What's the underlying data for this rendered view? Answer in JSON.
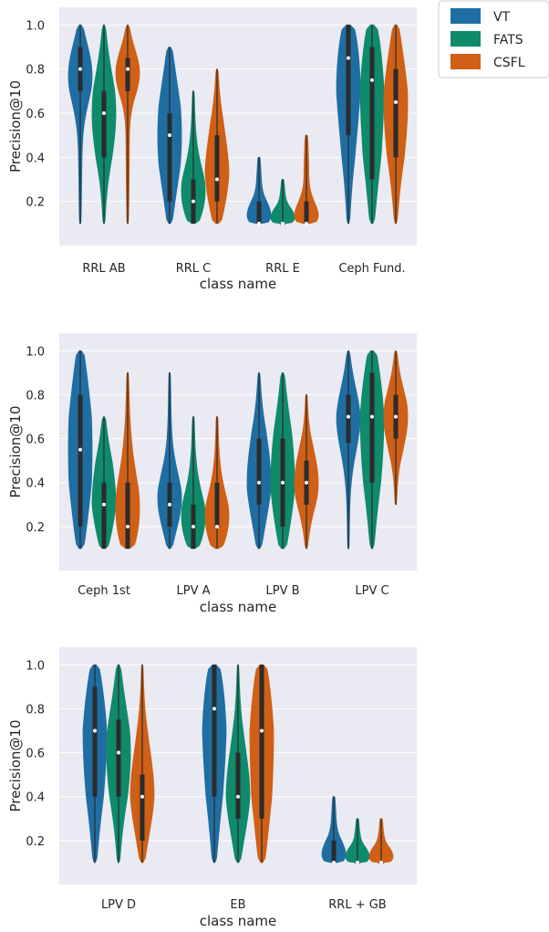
{
  "legend": {
    "entries": [
      {
        "name": "VT",
        "color": "#1f6ea3"
      },
      {
        "name": "FATS",
        "color": "#0f8a6b"
      },
      {
        "name": "CSFL",
        "color": "#cf6016"
      }
    ]
  },
  "chart_data": [
    {
      "type": "violin",
      "xlabel": "class name",
      "ylabel": "Precision@10",
      "ylim": [
        0.0,
        1.08
      ],
      "yticks": [
        "0.2",
        "0.4",
        "0.6",
        "0.8",
        "1.0"
      ],
      "categories": [
        "RRL AB",
        "RRL C",
        "RRL E",
        "Ceph Fund."
      ],
      "series": [
        {
          "name": "VT",
          "medians": [
            0.8,
            0.5,
            0.1,
            0.85
          ],
          "q1": [
            0.7,
            0.2,
            0.1,
            0.5
          ],
          "q3": [
            0.9,
            0.6,
            0.2,
            1.0
          ],
          "min": [
            0.1,
            0.1,
            0.1,
            0.1
          ],
          "max": [
            1.0,
            0.9,
            0.4,
            1.0
          ]
        },
        {
          "name": "FATS",
          "medians": [
            0.6,
            0.2,
            0.1,
            0.75
          ],
          "q1": [
            0.4,
            0.1,
            0.1,
            0.3
          ],
          "q3": [
            0.7,
            0.3,
            0.1,
            0.9
          ],
          "min": [
            0.1,
            0.1,
            0.1,
            0.1
          ],
          "max": [
            1.0,
            0.7,
            0.3,
            1.0
          ]
        },
        {
          "name": "CSFL",
          "medians": [
            0.8,
            0.3,
            0.1,
            0.65
          ],
          "q1": [
            0.7,
            0.2,
            0.1,
            0.4
          ],
          "q3": [
            0.85,
            0.5,
            0.2,
            0.8
          ],
          "min": [
            0.1,
            0.1,
            0.1,
            0.1
          ],
          "max": [
            1.0,
            0.8,
            0.5,
            1.0
          ]
        }
      ]
    },
    {
      "type": "violin",
      "xlabel": "class name",
      "ylabel": "Precision@10",
      "ylim": [
        0.0,
        1.08
      ],
      "yticks": [
        "0.2",
        "0.4",
        "0.6",
        "0.8",
        "1.0"
      ],
      "categories": [
        "Ceph 1st",
        "LPV A",
        "LPV B",
        "LPV C"
      ],
      "series": [
        {
          "name": "VT",
          "medians": [
            0.55,
            0.3,
            0.4,
            0.7
          ],
          "q1": [
            0.2,
            0.2,
            0.3,
            0.58
          ],
          "q3": [
            0.8,
            0.4,
            0.6,
            0.8
          ],
          "min": [
            0.1,
            0.1,
            0.1,
            0.1
          ],
          "max": [
            1.0,
            0.9,
            0.9,
            1.0
          ]
        },
        {
          "name": "FATS",
          "medians": [
            0.3,
            0.2,
            0.4,
            0.7
          ],
          "q1": [
            0.1,
            0.1,
            0.2,
            0.4
          ],
          "q3": [
            0.4,
            0.3,
            0.6,
            0.9
          ],
          "min": [
            0.1,
            0.1,
            0.1,
            0.1
          ],
          "max": [
            0.7,
            0.7,
            0.9,
            1.0
          ]
        },
        {
          "name": "CSFL",
          "medians": [
            0.2,
            0.2,
            0.4,
            0.7
          ],
          "q1": [
            0.1,
            0.2,
            0.3,
            0.6
          ],
          "q3": [
            0.4,
            0.4,
            0.5,
            0.8
          ],
          "min": [
            0.1,
            0.1,
            0.1,
            0.3
          ],
          "max": [
            0.9,
            0.7,
            0.8,
            1.0
          ]
        }
      ]
    },
    {
      "type": "violin",
      "xlabel": "class name",
      "ylabel": "Precision@10",
      "ylim": [
        0.0,
        1.08
      ],
      "yticks": [
        "0.2",
        "0.4",
        "0.6",
        "0.8",
        "1.0"
      ],
      "categories": [
        "LPV D",
        "EB",
        "RRL + GB"
      ],
      "series": [
        {
          "name": "VT",
          "medians": [
            0.7,
            0.8,
            0.1
          ],
          "q1": [
            0.4,
            0.4,
            0.1
          ],
          "q3": [
            0.9,
            1.0,
            0.2
          ],
          "min": [
            0.1,
            0.1,
            0.1
          ],
          "max": [
            1.0,
            1.0,
            0.4
          ]
        },
        {
          "name": "FATS",
          "medians": [
            0.6,
            0.4,
            0.1
          ],
          "q1": [
            0.4,
            0.3,
            0.1
          ],
          "q3": [
            0.75,
            0.6,
            0.1
          ],
          "min": [
            0.1,
            0.1,
            0.1
          ],
          "max": [
            1.0,
            1.0,
            0.3
          ]
        },
        {
          "name": "CSFL",
          "medians": [
            0.4,
            0.7,
            0.1
          ],
          "q1": [
            0.2,
            0.3,
            0.1
          ],
          "q3": [
            0.5,
            1.0,
            0.1
          ],
          "min": [
            0.1,
            0.1,
            0.1
          ],
          "max": [
            1.0,
            1.0,
            0.3
          ]
        }
      ]
    }
  ]
}
